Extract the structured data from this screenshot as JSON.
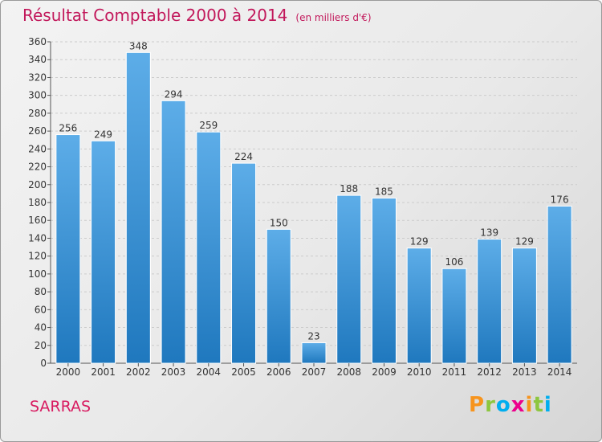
{
  "title": "Résultat Comptable 2000 à 2014",
  "subtitle": "(en milliers d'€)",
  "place": "SARRAS",
  "logo": {
    "letters": [
      "P",
      "r",
      "o",
      "x",
      "i",
      "t",
      "i"
    ],
    "colors": [
      "#f7941d",
      "#8dc63f",
      "#00aeef",
      "#ec008c",
      "#f7941d",
      "#8dc63f",
      "#00aeef"
    ]
  },
  "colors": {
    "bar_top": "#5dade8",
    "bar_bottom": "#1f78be",
    "title": "#c2185b",
    "grid": "#cccccc"
  },
  "chart_data": {
    "type": "bar",
    "categories": [
      "2000",
      "2001",
      "2002",
      "2003",
      "2004",
      "2005",
      "2006",
      "2007",
      "2008",
      "2009",
      "2010",
      "2011",
      "2012",
      "2013",
      "2014"
    ],
    "values": [
      256,
      249,
      348,
      294,
      259,
      224,
      150,
      23,
      188,
      185,
      129,
      106,
      139,
      129,
      176
    ],
    "ylim": [
      0,
      360
    ],
    "yticks": [
      0,
      20,
      40,
      60,
      80,
      100,
      120,
      140,
      160,
      180,
      200,
      220,
      240,
      260,
      280,
      300,
      320,
      340,
      360
    ],
    "grid": true,
    "data_labels": true
  }
}
